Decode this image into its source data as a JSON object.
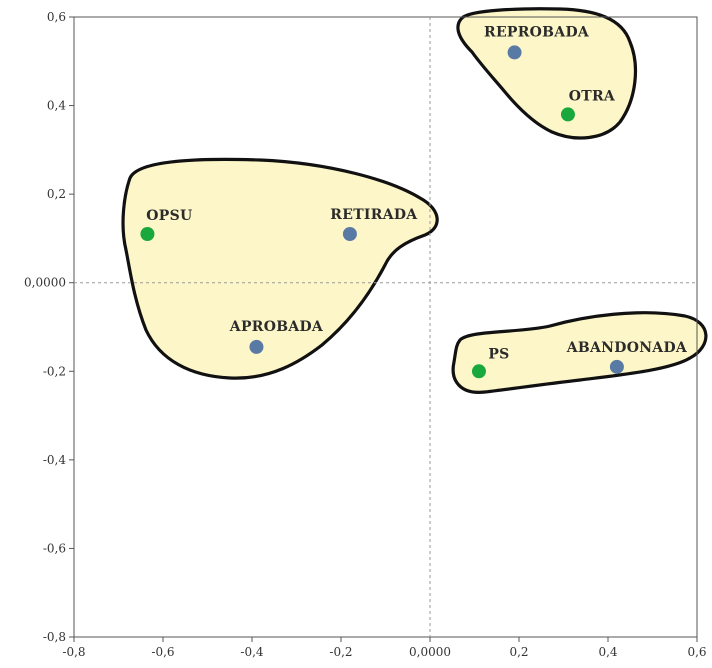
{
  "chart_data": {
    "type": "scatter",
    "xlim": [
      -0.8,
      0.6
    ],
    "ylim": [
      -0.8,
      0.6
    ],
    "x_ticks": [
      {
        "value": -0.8,
        "label": "-0,8"
      },
      {
        "value": -0.6,
        "label": "-0,6"
      },
      {
        "value": -0.4,
        "label": "-0,4"
      },
      {
        "value": -0.2,
        "label": "-0,2"
      },
      {
        "value": 0.0,
        "label": "0,0000"
      },
      {
        "value": 0.2,
        "label": "0,2"
      },
      {
        "value": 0.4,
        "label": "0,4"
      },
      {
        "value": 0.6,
        "label": "0,6"
      }
    ],
    "y_ticks": [
      {
        "value": 0.6,
        "label": "0,6"
      },
      {
        "value": 0.4,
        "label": "0,4"
      },
      {
        "value": 0.2,
        "label": "0,2"
      },
      {
        "value": 0.0,
        "label": "0,0000"
      },
      {
        "value": -0.2,
        "label": "-0,2"
      },
      {
        "value": -0.4,
        "label": "-0,4"
      },
      {
        "value": -0.6,
        "label": "-0,6"
      },
      {
        "value": -0.8,
        "label": "-0,8"
      }
    ],
    "reference_lines": {
      "x": 0.0,
      "y": 0.0
    },
    "grid": false,
    "colors": {
      "blue": "#5a7aa6",
      "green": "#18a83c",
      "cluster_fill": "#fdf6c8",
      "cluster_stroke": "#111111"
    },
    "points": [
      {
        "label": "REPROBADA",
        "x": 0.19,
        "y": 0.52,
        "color": "#5a7aa6"
      },
      {
        "label": "OTRA",
        "x": 0.31,
        "y": 0.38,
        "color": "#18a83c"
      },
      {
        "label": "OPSU",
        "x": -0.635,
        "y": 0.11,
        "color": "#18a83c"
      },
      {
        "label": "RETIRADA",
        "x": -0.18,
        "y": 0.11,
        "color": "#5a7aa6"
      },
      {
        "label": "APROBADA",
        "x": -0.39,
        "y": -0.145,
        "color": "#5a7aa6"
      },
      {
        "label": "PS",
        "x": 0.11,
        "y": -0.2,
        "color": "#18a83c"
      },
      {
        "label": "ABANDONADA",
        "x": 0.42,
        "y": -0.19,
        "color": "#5a7aa6"
      }
    ],
    "clusters": [
      {
        "name": "top-right",
        "members": [
          "REPROBADA",
          "OTRA"
        ]
      },
      {
        "name": "left",
        "members": [
          "OPSU",
          "RETIRADA",
          "APROBADA"
        ]
      },
      {
        "name": "bottom-right",
        "members": [
          "PS",
          "ABANDONADA"
        ]
      }
    ]
  }
}
